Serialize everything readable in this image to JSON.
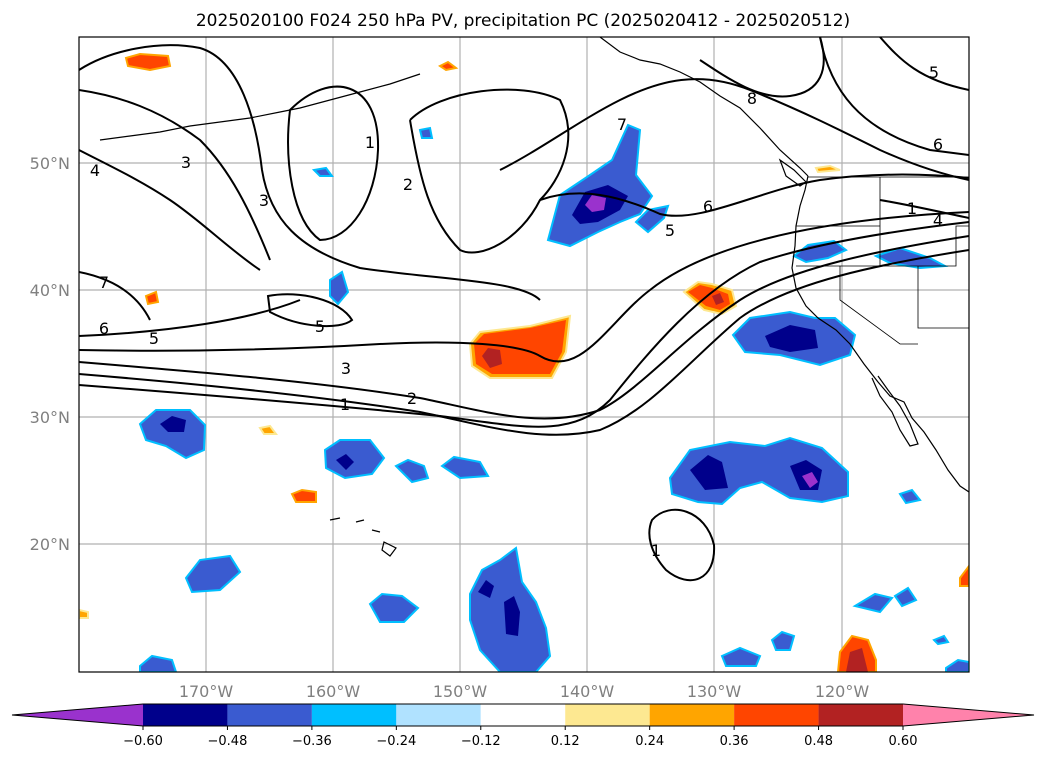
{
  "title": "2025020100 F024 250 hPa PV, precipitation PC (2025020412 - 2025020512)",
  "lon_labels": [
    "170°W",
    "160°W",
    "150°W",
    "140°W",
    "130°W",
    "120°W"
  ],
  "lat_labels": [
    "50°N",
    "40°N",
    "30°N",
    "20°N"
  ],
  "colorbar": {
    "colors": [
      "#9a32cd",
      "#00008b",
      "#3a5bd0",
      "#00bfff",
      "#b0e2ff",
      "#ffffff",
      "#fde891",
      "#ffa500",
      "#ff4500",
      "#b22222",
      "#ff82ab"
    ],
    "tick_labels": [
      "−0.60",
      "−0.48",
      "−0.36",
      "−0.24",
      "−0.12",
      "0.12",
      "0.24",
      "0.36",
      "0.48",
      "0.60"
    ]
  },
  "contour_labels": [
    "4",
    "3",
    "3",
    "1",
    "2",
    "7",
    "8",
    "5",
    "6",
    "5",
    "6",
    "1",
    "4",
    "7",
    "6",
    "5",
    "5",
    "3",
    "2",
    "1",
    "1"
  ],
  "chart_data": {
    "type": "map",
    "region": "North Pacific / western North America",
    "projection": "lat-lon",
    "lon_range": [
      "180°W",
      "110°W"
    ],
    "lat_range": [
      "10°N",
      "60°N"
    ],
    "contour_field": "250 hPa PV",
    "shaded_field": "precipitation PC",
    "contour_levels_labeled": [
      1,
      2,
      3,
      4,
      5,
      6,
      7,
      8
    ],
    "color_levels": [
      -0.6,
      -0.48,
      -0.36,
      -0.24,
      -0.12,
      0.12,
      0.24,
      0.36,
      0.48,
      0.6
    ],
    "colorbar_extend": "both",
    "grid": true
  }
}
